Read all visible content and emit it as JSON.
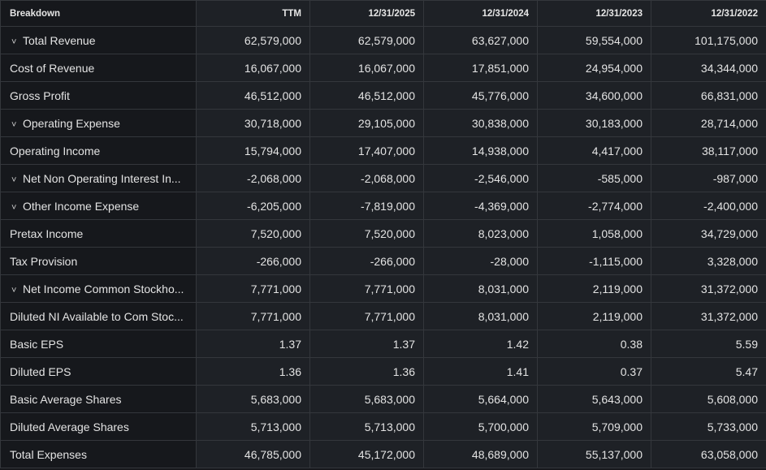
{
  "header": {
    "breakdown": "Breakdown",
    "columns": [
      "TTM",
      "12/31/2025",
      "12/31/2024",
      "12/31/2023",
      "12/31/2022"
    ]
  },
  "rows": [
    {
      "label": "Total Revenue",
      "expandable": true,
      "values": [
        "62,579,000",
        "62,579,000",
        "63,627,000",
        "59,554,000",
        "101,175,000"
      ]
    },
    {
      "label": "Cost of Revenue",
      "expandable": false,
      "values": [
        "16,067,000",
        "16,067,000",
        "17,851,000",
        "24,954,000",
        "34,344,000"
      ]
    },
    {
      "label": "Gross Profit",
      "expandable": false,
      "values": [
        "46,512,000",
        "46,512,000",
        "45,776,000",
        "34,600,000",
        "66,831,000"
      ]
    },
    {
      "label": "Operating Expense",
      "expandable": true,
      "values": [
        "30,718,000",
        "29,105,000",
        "30,838,000",
        "30,183,000",
        "28,714,000"
      ]
    },
    {
      "label": "Operating Income",
      "expandable": false,
      "values": [
        "15,794,000",
        "17,407,000",
        "14,938,000",
        "4,417,000",
        "38,117,000"
      ]
    },
    {
      "label": "Net Non Operating Interest In...",
      "expandable": true,
      "values": [
        "-2,068,000",
        "-2,068,000",
        "-2,546,000",
        "-585,000",
        "-987,000"
      ]
    },
    {
      "label": "Other Income Expense",
      "expandable": true,
      "values": [
        "-6,205,000",
        "-7,819,000",
        "-4,369,000",
        "-2,774,000",
        "-2,400,000"
      ]
    },
    {
      "label": "Pretax Income",
      "expandable": false,
      "values": [
        "7,520,000",
        "7,520,000",
        "8,023,000",
        "1,058,000",
        "34,729,000"
      ]
    },
    {
      "label": "Tax Provision",
      "expandable": false,
      "values": [
        "-266,000",
        "-266,000",
        "-28,000",
        "-1,115,000",
        "3,328,000"
      ]
    },
    {
      "label": "Net Income Common Stockho...",
      "expandable": true,
      "values": [
        "7,771,000",
        "7,771,000",
        "8,031,000",
        "2,119,000",
        "31,372,000"
      ]
    },
    {
      "label": "Diluted NI Available to Com Stoc...",
      "expandable": false,
      "values": [
        "7,771,000",
        "7,771,000",
        "8,031,000",
        "2,119,000",
        "31,372,000"
      ]
    },
    {
      "label": "Basic EPS",
      "expandable": false,
      "values": [
        "1.37",
        "1.37",
        "1.42",
        "0.38",
        "5.59"
      ]
    },
    {
      "label": "Diluted EPS",
      "expandable": false,
      "values": [
        "1.36",
        "1.36",
        "1.41",
        "0.37",
        "5.47"
      ]
    },
    {
      "label": "Basic Average Shares",
      "expandable": false,
      "values": [
        "5,683,000",
        "5,683,000",
        "5,664,000",
        "5,643,000",
        "5,608,000"
      ]
    },
    {
      "label": "Diluted Average Shares",
      "expandable": false,
      "values": [
        "5,713,000",
        "5,713,000",
        "5,700,000",
        "5,709,000",
        "5,733,000"
      ]
    },
    {
      "label": "Total Expenses",
      "expandable": false,
      "values": [
        "46,785,000",
        "45,172,000",
        "48,689,000",
        "55,137,000",
        "63,058,000"
      ]
    }
  ]
}
